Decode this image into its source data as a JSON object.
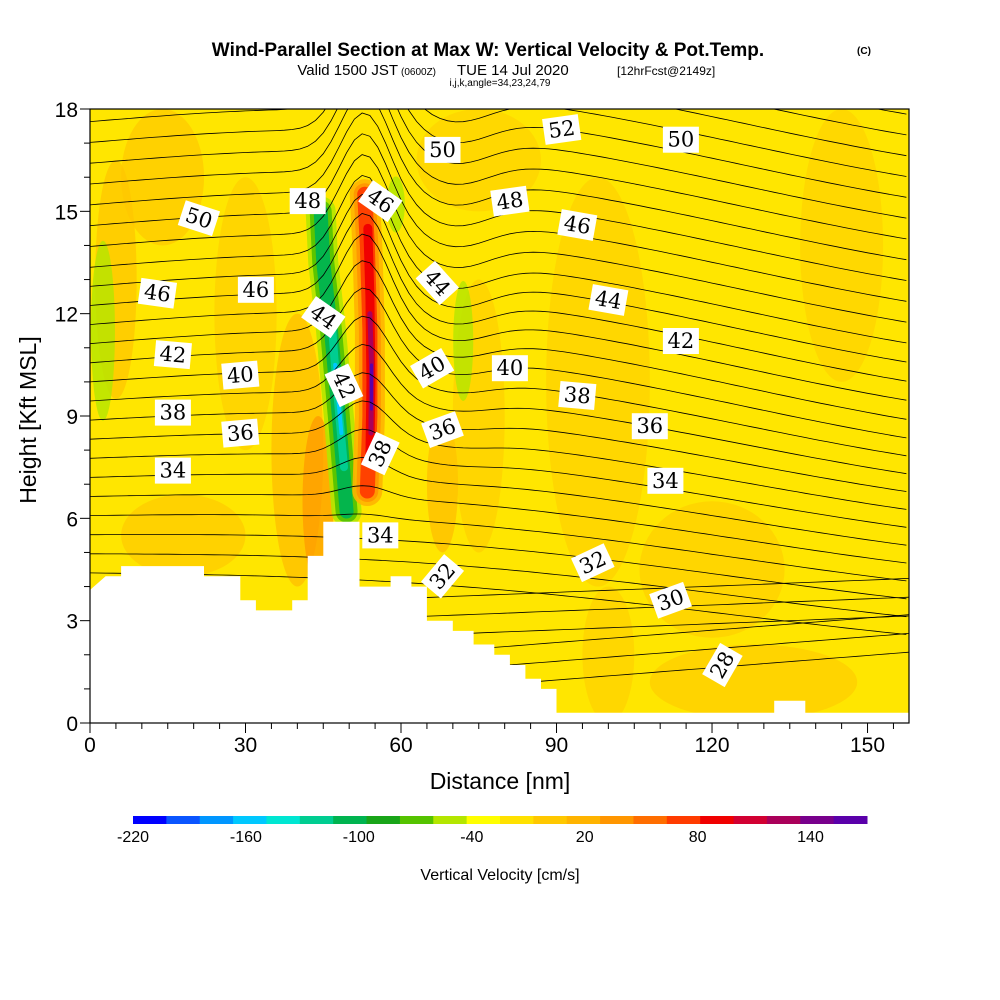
{
  "title": {
    "main": "Wind-Parallel Section at Max W: Vertical Velocity & Pot.Temp.",
    "copyright": "(C)",
    "valid_prefix": "Valid 1500 JST",
    "valid_utc": "(0600Z)",
    "valid_date": "TUE 14 Jul 2020",
    "forecast": "[12hrFcst@2149z]",
    "section_info": "i,j,k,angle=34,23,24,79"
  },
  "chart_data": {
    "type": "heatmap",
    "xlabel": "Distance [nm]",
    "ylabel": "Height [Kft MSL]",
    "xlim": [
      0,
      158
    ],
    "ylim": [
      0,
      18
    ],
    "x_ticks": [
      0,
      30,
      60,
      90,
      120,
      150
    ],
    "y_ticks": [
      0,
      3,
      6,
      9,
      12,
      15,
      18
    ],
    "grid": false,
    "colorbar": {
      "label": "Vertical Velocity [cm/s]",
      "tick_labels": [
        "-220",
        "-160",
        "-100",
        "-40",
        "20",
        "80",
        "140"
      ],
      "tick_values": [
        -220,
        -160,
        -100,
        -40,
        20,
        80,
        140
      ],
      "range": [
        -220,
        170
      ],
      "colors": [
        "#0000ff",
        "#0a55ff",
        "#0096ff",
        "#00c8ff",
        "#00e6d2",
        "#00cd91",
        "#00b450",
        "#19a519",
        "#55c300",
        "#b4e600",
        "#ffff00",
        "#ffe100",
        "#ffc800",
        "#ffb400",
        "#ff9600",
        "#ff6e00",
        "#ff3c00",
        "#f00000",
        "#d20032",
        "#aa005a",
        "#78008c",
        "#5a00aa"
      ]
    },
    "terrain_profile": [
      {
        "x": 0,
        "y": 3.9
      },
      {
        "x": 3,
        "y": 4.3
      },
      {
        "x": 6,
        "y": 4.3
      },
      {
        "x": 6,
        "y": 4.6
      },
      {
        "x": 22,
        "y": 4.6
      },
      {
        "x": 22,
        "y": 4.3
      },
      {
        "x": 29,
        "y": 4.3
      },
      {
        "x": 29,
        "y": 3.6
      },
      {
        "x": 32,
        "y": 3.6
      },
      {
        "x": 32,
        "y": 3.3
      },
      {
        "x": 39,
        "y": 3.3
      },
      {
        "x": 39,
        "y": 3.6
      },
      {
        "x": 42,
        "y": 3.6
      },
      {
        "x": 42,
        "y": 4.9
      },
      {
        "x": 45,
        "y": 4.9
      },
      {
        "x": 45,
        "y": 5.9
      },
      {
        "x": 52,
        "y": 5.9
      },
      {
        "x": 52,
        "y": 4.0
      },
      {
        "x": 58,
        "y": 4.0
      },
      {
        "x": 58,
        "y": 4.3
      },
      {
        "x": 62,
        "y": 4.3
      },
      {
        "x": 62,
        "y": 4.0
      },
      {
        "x": 65,
        "y": 4.0
      },
      {
        "x": 65,
        "y": 3.0
      },
      {
        "x": 70,
        "y": 3.0
      },
      {
        "x": 70,
        "y": 2.7
      },
      {
        "x": 74,
        "y": 2.7
      },
      {
        "x": 74,
        "y": 2.3
      },
      {
        "x": 78,
        "y": 2.3
      },
      {
        "x": 78,
        "y": 2.0
      },
      {
        "x": 81,
        "y": 2.0
      },
      {
        "x": 81,
        "y": 1.7
      },
      {
        "x": 84,
        "y": 1.7
      },
      {
        "x": 84,
        "y": 1.3
      },
      {
        "x": 87,
        "y": 1.3
      },
      {
        "x": 87,
        "y": 1.0
      },
      {
        "x": 90,
        "y": 1.0
      },
      {
        "x": 90,
        "y": 0.3
      },
      {
        "x": 132,
        "y": 0.3
      },
      {
        "x": 132,
        "y": 0.65
      },
      {
        "x": 138,
        "y": 0.65
      },
      {
        "x": 138,
        "y": 0.3
      },
      {
        "x": 158,
        "y": 0.3
      }
    ],
    "theta_contour_labels": [
      {
        "text": "52",
        "x": 91,
        "y": 17.4,
        "angle": -8
      },
      {
        "text": "50",
        "x": 68,
        "y": 16.8,
        "angle": 0
      },
      {
        "text": "50",
        "x": 114,
        "y": 17.1,
        "angle": 0
      },
      {
        "text": "50",
        "x": 21,
        "y": 14.8,
        "angle": 18
      },
      {
        "text": "48",
        "x": 42,
        "y": 15.3,
        "angle": 0
      },
      {
        "text": "46",
        "x": 56,
        "y": 15.3,
        "angle": 35
      },
      {
        "text": "48",
        "x": 81,
        "y": 15.3,
        "angle": -8
      },
      {
        "text": "46",
        "x": 94,
        "y": 14.6,
        "angle": 10
      },
      {
        "text": "46",
        "x": 13,
        "y": 12.6,
        "angle": 8
      },
      {
        "text": "46",
        "x": 32,
        "y": 12.7,
        "angle": 0
      },
      {
        "text": "44",
        "x": 67,
        "y": 12.9,
        "angle": 48
      },
      {
        "text": "44",
        "x": 100,
        "y": 12.4,
        "angle": 10
      },
      {
        "text": "44",
        "x": 45,
        "y": 11.9,
        "angle": 35
      },
      {
        "text": "42",
        "x": 16,
        "y": 10.8,
        "angle": 5
      },
      {
        "text": "42",
        "x": 114,
        "y": 11.2,
        "angle": 0
      },
      {
        "text": "40",
        "x": 29,
        "y": 10.2,
        "angle": -5
      },
      {
        "text": "40",
        "x": 66,
        "y": 10.4,
        "angle": -30
      },
      {
        "text": "40",
        "x": 81,
        "y": 10.4,
        "angle": 0
      },
      {
        "text": "42",
        "x": 49,
        "y": 9.9,
        "angle": 65
      },
      {
        "text": "38",
        "x": 16,
        "y": 9.1,
        "angle": 0
      },
      {
        "text": "38",
        "x": 94,
        "y": 9.6,
        "angle": 5
      },
      {
        "text": "36",
        "x": 29,
        "y": 8.5,
        "angle": -5
      },
      {
        "text": "36",
        "x": 68,
        "y": 8.6,
        "angle": -20
      },
      {
        "text": "36",
        "x": 108,
        "y": 8.7,
        "angle": 0
      },
      {
        "text": "38",
        "x": 56,
        "y": 7.9,
        "angle": -65
      },
      {
        "text": "34",
        "x": 16,
        "y": 7.4,
        "angle": 0
      },
      {
        "text": "34",
        "x": 111,
        "y": 7.1,
        "angle": 0
      },
      {
        "text": "34",
        "x": 56,
        "y": 5.5,
        "angle": 0
      },
      {
        "text": "32",
        "x": 68,
        "y": 4.3,
        "angle": -50
      },
      {
        "text": "32",
        "x": 97,
        "y": 4.7,
        "angle": -25
      },
      {
        "text": "30",
        "x": 112,
        "y": 3.6,
        "angle": -20
      },
      {
        "text": "28",
        "x": 122,
        "y": 1.7,
        "angle": -60
      }
    ]
  }
}
